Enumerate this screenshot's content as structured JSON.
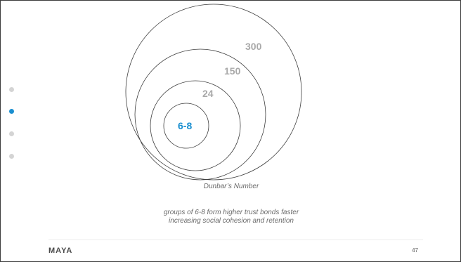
{
  "slide": {
    "background": "#ffffff",
    "border_color": "#3c3c3c"
  },
  "nav": {
    "active_index": 1,
    "active_color": "#1a8fd0",
    "inactive_color": "#d4d4d4",
    "dots": 4
  },
  "diagram": {
    "rings": [
      {
        "label": "300",
        "highlight": false
      },
      {
        "label": "150",
        "highlight": false
      },
      {
        "label": "24",
        "highlight": false
      },
      {
        "label": "6-8",
        "highlight": true
      }
    ],
    "ring_stroke_color": "#3c3c3c",
    "label_color": "#a9a9a9",
    "highlight_color": "#1a8fd0"
  },
  "caption": {
    "title": "Dunbar’s Number",
    "line1": "groups of 6-8 form higher trust bonds faster",
    "line2": "increasing social cohesion and retention"
  },
  "footer": {
    "brand": "MAYA",
    "page_number": "47"
  }
}
